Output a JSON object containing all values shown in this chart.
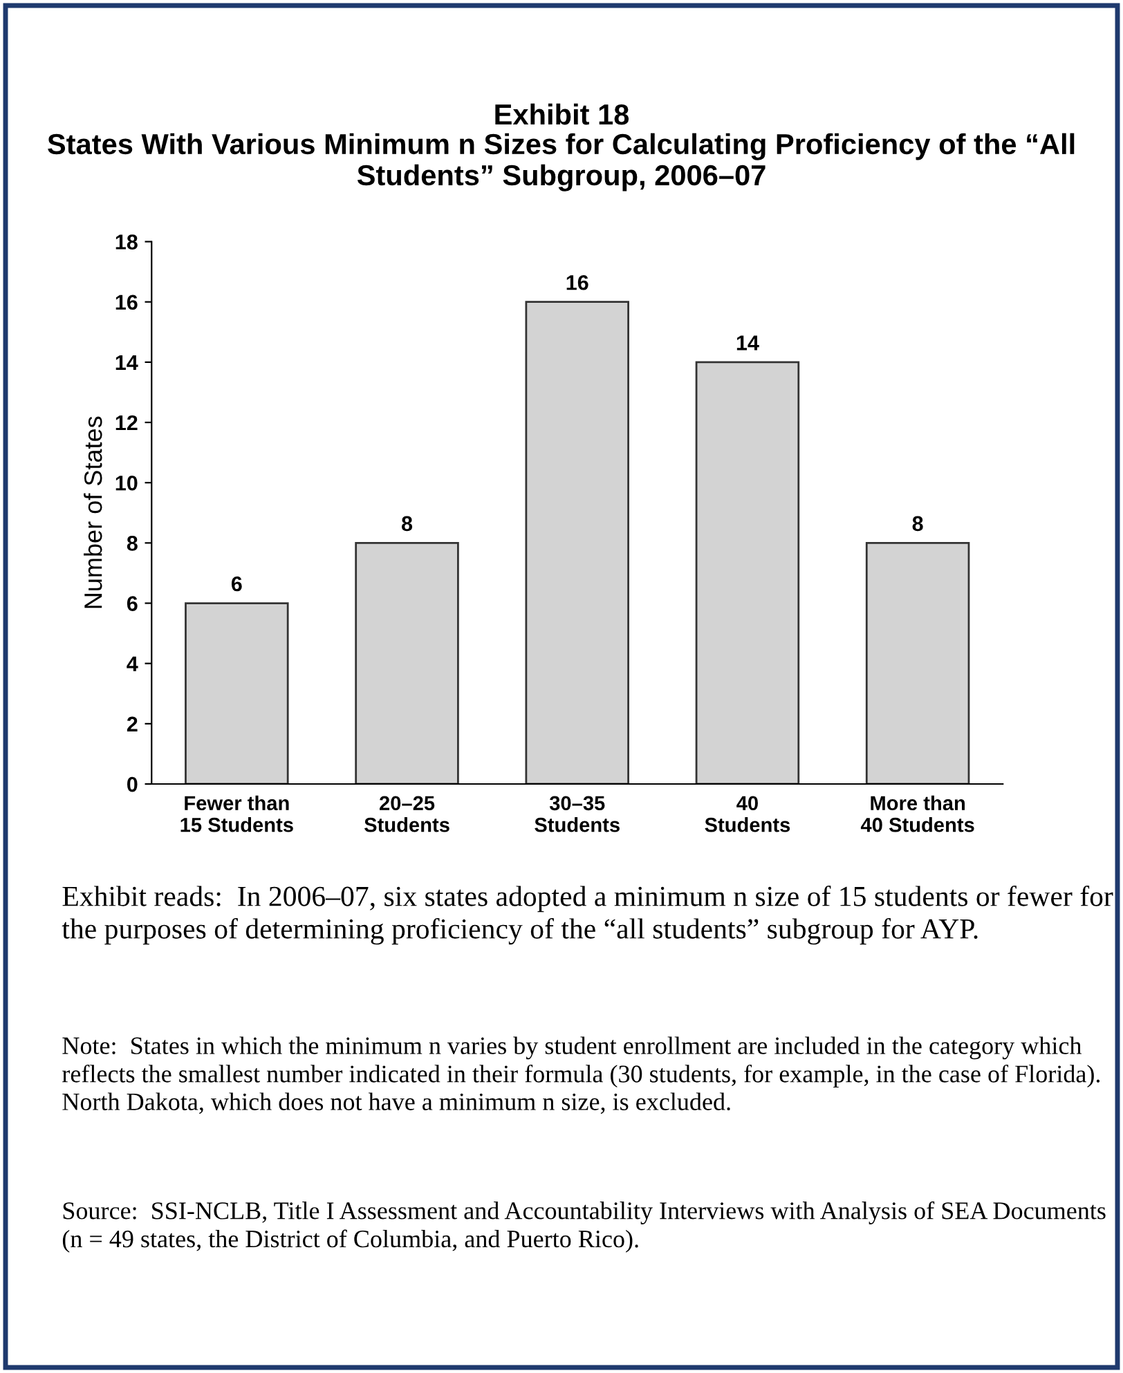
{
  "chart_data": {
    "type": "bar",
    "title": "Exhibit 18",
    "subtitle": "States With Various Minimum n Sizes for Calculating Proficiency of the “All Students” Subgroup, 2006–07",
    "ylabel": "Number of States",
    "categories": [
      "Fewer than\n15 Students",
      "20–25\nStudents",
      "30–35\nStudents",
      "40\nStudents",
      "More than\n40 Students"
    ],
    "values": [
      6,
      8,
      16,
      14,
      8
    ],
    "color": "#d3d3d3",
    "ylim": [
      0,
      18
    ],
    "yticks": [
      0,
      2,
      4,
      6,
      8,
      10,
      12,
      14,
      16,
      18
    ],
    "grid": false,
    "data_labels": true,
    "annotations": [
      "Exhibit reads:  In 2006–07, six states adopted a minimum n size of 15 students or fewer for the purposes of determining proficiency of the “all students” subgroup for AYP.",
      "Note:  States in which the minimum n varies by student enrollment are included in the category which reflects the smallest number indicated in their formula (30 students, for example, in the case of Florida). North Dakota, which does not have a minimum n size, is excluded.",
      "Source:  SSI-NCLB, Title I Assessment and Accountability Interviews with Analysis of SEA Documents (n = 49 states, the District of Columbia, and Puerto Rico)."
    ]
  }
}
